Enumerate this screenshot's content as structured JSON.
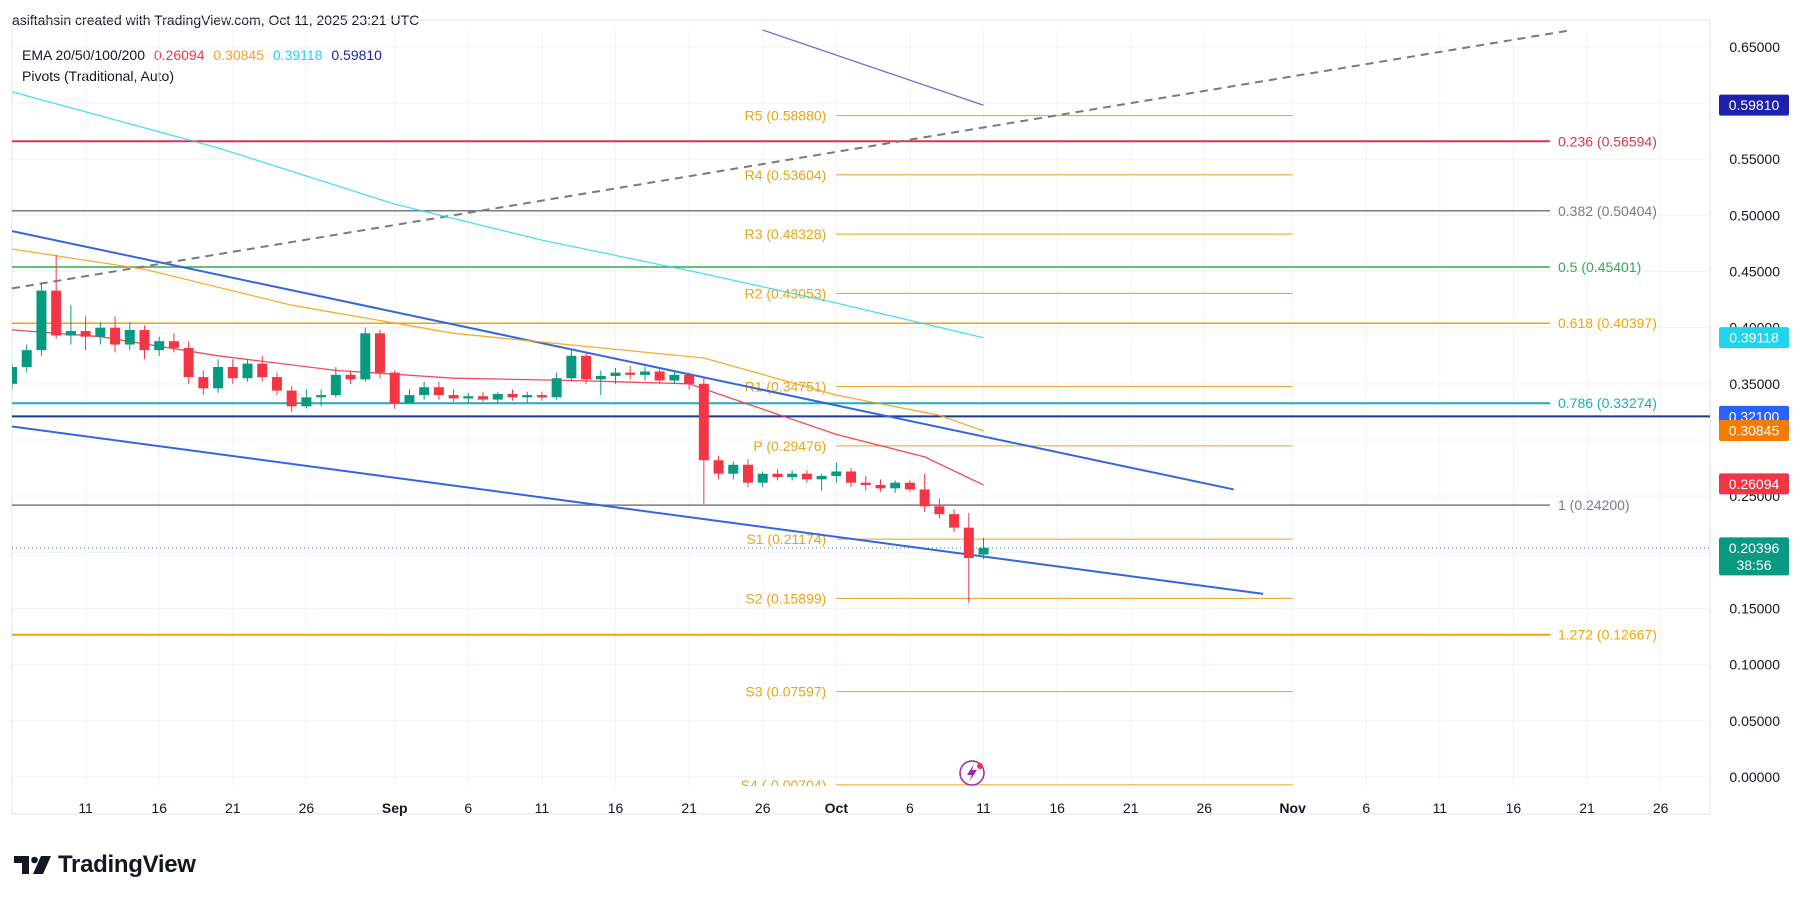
{
  "header": {
    "text": "asiftahsin created with TradingView.com, Oct 11, 2025 23:21 UTC"
  },
  "legend": {
    "ema_label": "EMA 20/50/100/200",
    "ema_values": [
      {
        "value": "0.26094",
        "color": "#f23645"
      },
      {
        "value": "0.30845",
        "color": "#f7a21b"
      },
      {
        "value": "0.39118",
        "color": "#22d3ee"
      },
      {
        "value": "0.59810",
        "color": "#1e22aa"
      }
    ],
    "pivots_label": "Pivots (Traditional, Auto)"
  },
  "brand": {
    "name": "TradingView"
  },
  "chart_data": {
    "type": "candlestick",
    "y_range": [
      -0.008,
      0.665
    ],
    "y_ticks": [
      "0.65000",
      "0.55000",
      "0.50000",
      "0.45000",
      "0.40000",
      "0.35000",
      "0.25000",
      "0.15000",
      "0.10000",
      "0.05000",
      "0.00000"
    ],
    "x_range": [
      "2025-08-06",
      "2025-11-30"
    ],
    "x_ticks": [
      {
        "date": "2025-08-11",
        "label": "11"
      },
      {
        "date": "2025-08-16",
        "label": "16"
      },
      {
        "date": "2025-08-21",
        "label": "21"
      },
      {
        "date": "2025-08-26",
        "label": "26"
      },
      {
        "date": "2025-09-01",
        "label": "Sep"
      },
      {
        "date": "2025-09-06",
        "label": "6"
      },
      {
        "date": "2025-09-11",
        "label": "11"
      },
      {
        "date": "2025-09-16",
        "label": "16"
      },
      {
        "date": "2025-09-21",
        "label": "21"
      },
      {
        "date": "2025-09-26",
        "label": "26"
      },
      {
        "date": "2025-10-01",
        "label": "Oct"
      },
      {
        "date": "2025-10-06",
        "label": "6"
      },
      {
        "date": "2025-10-11",
        "label": "11"
      },
      {
        "date": "2025-10-16",
        "label": "16"
      },
      {
        "date": "2025-10-21",
        "label": "21"
      },
      {
        "date": "2025-10-26",
        "label": "26"
      },
      {
        "date": "2025-11-01",
        "label": "Nov"
      },
      {
        "date": "2025-11-06",
        "label": "6"
      },
      {
        "date": "2025-11-11",
        "label": "11"
      },
      {
        "date": "2025-11-16",
        "label": "16"
      },
      {
        "date": "2025-11-21",
        "label": "21"
      },
      {
        "date": "2025-11-26",
        "label": "26"
      }
    ],
    "candles": [
      {
        "date": "2025-08-06",
        "o": 0.35,
        "h": 0.368,
        "l": 0.345,
        "c": 0.365
      },
      {
        "date": "2025-08-07",
        "o": 0.365,
        "h": 0.385,
        "l": 0.36,
        "c": 0.38
      },
      {
        "date": "2025-08-08",
        "o": 0.38,
        "h": 0.44,
        "l": 0.375,
        "c": 0.433
      },
      {
        "date": "2025-08-09",
        "o": 0.433,
        "h": 0.465,
        "l": 0.39,
        "c": 0.393
      },
      {
        "date": "2025-08-10",
        "o": 0.393,
        "h": 0.42,
        "l": 0.385,
        "c": 0.397
      },
      {
        "date": "2025-08-11",
        "o": 0.397,
        "h": 0.41,
        "l": 0.38,
        "c": 0.392
      },
      {
        "date": "2025-08-12",
        "o": 0.392,
        "h": 0.405,
        "l": 0.385,
        "c": 0.4
      },
      {
        "date": "2025-08-13",
        "o": 0.4,
        "h": 0.41,
        "l": 0.378,
        "c": 0.385
      },
      {
        "date": "2025-08-14",
        "o": 0.385,
        "h": 0.405,
        "l": 0.38,
        "c": 0.398
      },
      {
        "date": "2025-08-15",
        "o": 0.398,
        "h": 0.402,
        "l": 0.372,
        "c": 0.38
      },
      {
        "date": "2025-08-16",
        "o": 0.38,
        "h": 0.392,
        "l": 0.375,
        "c": 0.388
      },
      {
        "date": "2025-08-17",
        "o": 0.388,
        "h": 0.395,
        "l": 0.378,
        "c": 0.382
      },
      {
        "date": "2025-08-18",
        "o": 0.382,
        "h": 0.388,
        "l": 0.35,
        "c": 0.356
      },
      {
        "date": "2025-08-19",
        "o": 0.356,
        "h": 0.362,
        "l": 0.34,
        "c": 0.346
      },
      {
        "date": "2025-08-20",
        "o": 0.346,
        "h": 0.372,
        "l": 0.342,
        "c": 0.365
      },
      {
        "date": "2025-08-21",
        "o": 0.365,
        "h": 0.372,
        "l": 0.35,
        "c": 0.355
      },
      {
        "date": "2025-08-22",
        "o": 0.355,
        "h": 0.372,
        "l": 0.352,
        "c": 0.368
      },
      {
        "date": "2025-08-23",
        "o": 0.368,
        "h": 0.375,
        "l": 0.352,
        "c": 0.356
      },
      {
        "date": "2025-08-24",
        "o": 0.356,
        "h": 0.36,
        "l": 0.34,
        "c": 0.344
      },
      {
        "date": "2025-08-25",
        "o": 0.344,
        "h": 0.348,
        "l": 0.325,
        "c": 0.33
      },
      {
        "date": "2025-08-26",
        "o": 0.33,
        "h": 0.345,
        "l": 0.328,
        "c": 0.338
      },
      {
        "date": "2025-08-27",
        "o": 0.338,
        "h": 0.345,
        "l": 0.33,
        "c": 0.34
      },
      {
        "date": "2025-08-28",
        "o": 0.34,
        "h": 0.365,
        "l": 0.338,
        "c": 0.358
      },
      {
        "date": "2025-08-29",
        "o": 0.358,
        "h": 0.362,
        "l": 0.35,
        "c": 0.354
      },
      {
        "date": "2025-08-30",
        "o": 0.354,
        "h": 0.4,
        "l": 0.352,
        "c": 0.395
      },
      {
        "date": "2025-08-31",
        "o": 0.395,
        "h": 0.398,
        "l": 0.355,
        "c": 0.36
      },
      {
        "date": "2025-09-01",
        "o": 0.36,
        "h": 0.362,
        "l": 0.328,
        "c": 0.333
      },
      {
        "date": "2025-09-02",
        "o": 0.333,
        "h": 0.345,
        "l": 0.332,
        "c": 0.34
      },
      {
        "date": "2025-09-03",
        "o": 0.34,
        "h": 0.352,
        "l": 0.336,
        "c": 0.347
      },
      {
        "date": "2025-09-04",
        "o": 0.347,
        "h": 0.352,
        "l": 0.336,
        "c": 0.34
      },
      {
        "date": "2025-09-05",
        "o": 0.34,
        "h": 0.345,
        "l": 0.334,
        "c": 0.337
      },
      {
        "date": "2025-09-06",
        "o": 0.337,
        "h": 0.342,
        "l": 0.333,
        "c": 0.339
      },
      {
        "date": "2025-09-07",
        "o": 0.339,
        "h": 0.343,
        "l": 0.334,
        "c": 0.336
      },
      {
        "date": "2025-09-08",
        "o": 0.336,
        "h": 0.343,
        "l": 0.333,
        "c": 0.341
      },
      {
        "date": "2025-09-09",
        "o": 0.341,
        "h": 0.345,
        "l": 0.335,
        "c": 0.338
      },
      {
        "date": "2025-09-10",
        "o": 0.338,
        "h": 0.343,
        "l": 0.333,
        "c": 0.34
      },
      {
        "date": "2025-09-11",
        "o": 0.34,
        "h": 0.343,
        "l": 0.335,
        "c": 0.338
      },
      {
        "date": "2025-09-12",
        "o": 0.338,
        "h": 0.36,
        "l": 0.336,
        "c": 0.355
      },
      {
        "date": "2025-09-13",
        "o": 0.355,
        "h": 0.38,
        "l": 0.352,
        "c": 0.375
      },
      {
        "date": "2025-09-14",
        "o": 0.375,
        "h": 0.378,
        "l": 0.35,
        "c": 0.354
      },
      {
        "date": "2025-09-15",
        "o": 0.354,
        "h": 0.362,
        "l": 0.34,
        "c": 0.357
      },
      {
        "date": "2025-09-16",
        "o": 0.357,
        "h": 0.364,
        "l": 0.35,
        "c": 0.36
      },
      {
        "date": "2025-09-17",
        "o": 0.36,
        "h": 0.366,
        "l": 0.354,
        "c": 0.358
      },
      {
        "date": "2025-09-18",
        "o": 0.358,
        "h": 0.365,
        "l": 0.353,
        "c": 0.361
      },
      {
        "date": "2025-09-19",
        "o": 0.361,
        "h": 0.363,
        "l": 0.35,
        "c": 0.353
      },
      {
        "date": "2025-09-20",
        "o": 0.353,
        "h": 0.362,
        "l": 0.35,
        "c": 0.358
      },
      {
        "date": "2025-09-21",
        "o": 0.358,
        "h": 0.36,
        "l": 0.345,
        "c": 0.35
      },
      {
        "date": "2025-09-22",
        "o": 0.35,
        "h": 0.355,
        "l": 0.243,
        "c": 0.282
      },
      {
        "date": "2025-09-23",
        "o": 0.282,
        "h": 0.286,
        "l": 0.265,
        "c": 0.27
      },
      {
        "date": "2025-09-24",
        "o": 0.27,
        "h": 0.281,
        "l": 0.265,
        "c": 0.278
      },
      {
        "date": "2025-09-25",
        "o": 0.278,
        "h": 0.283,
        "l": 0.258,
        "c": 0.262
      },
      {
        "date": "2025-09-26",
        "o": 0.262,
        "h": 0.272,
        "l": 0.258,
        "c": 0.27
      },
      {
        "date": "2025-09-27",
        "o": 0.27,
        "h": 0.274,
        "l": 0.264,
        "c": 0.267
      },
      {
        "date": "2025-09-28",
        "o": 0.267,
        "h": 0.273,
        "l": 0.264,
        "c": 0.27
      },
      {
        "date": "2025-09-29",
        "o": 0.27,
        "h": 0.273,
        "l": 0.262,
        "c": 0.265
      },
      {
        "date": "2025-09-30",
        "o": 0.265,
        "h": 0.27,
        "l": 0.255,
        "c": 0.268
      },
      {
        "date": "2025-10-01",
        "o": 0.268,
        "h": 0.28,
        "l": 0.262,
        "c": 0.272
      },
      {
        "date": "2025-10-02",
        "o": 0.272,
        "h": 0.275,
        "l": 0.258,
        "c": 0.262
      },
      {
        "date": "2025-10-03",
        "o": 0.262,
        "h": 0.268,
        "l": 0.255,
        "c": 0.26
      },
      {
        "date": "2025-10-04",
        "o": 0.26,
        "h": 0.265,
        "l": 0.254,
        "c": 0.257
      },
      {
        "date": "2025-10-05",
        "o": 0.257,
        "h": 0.264,
        "l": 0.253,
        "c": 0.262
      },
      {
        "date": "2025-10-06",
        "o": 0.262,
        "h": 0.264,
        "l": 0.254,
        "c": 0.256
      },
      {
        "date": "2025-10-07",
        "o": 0.256,
        "h": 0.27,
        "l": 0.236,
        "c": 0.241
      },
      {
        "date": "2025-10-08",
        "o": 0.241,
        "h": 0.248,
        "l": 0.23,
        "c": 0.234
      },
      {
        "date": "2025-10-09",
        "o": 0.234,
        "h": 0.238,
        "l": 0.218,
        "c": 0.222
      },
      {
        "date": "2025-10-10",
        "o": 0.222,
        "h": 0.235,
        "l": 0.155,
        "c": 0.195
      },
      {
        "date": "2025-10-11",
        "o": 0.198,
        "h": 0.213,
        "l": 0.194,
        "c": 0.204
      }
    ],
    "emas": [
      {
        "name": "EMA 20",
        "color": "#f23645",
        "points": [
          [
            "2025-08-06",
            0.398
          ],
          [
            "2025-08-12",
            0.392
          ],
          [
            "2025-08-20",
            0.375
          ],
          [
            "2025-08-28",
            0.362
          ],
          [
            "2025-09-05",
            0.355
          ],
          [
            "2025-09-13",
            0.353
          ],
          [
            "2025-09-21",
            0.35
          ],
          [
            "2025-09-25",
            0.332
          ],
          [
            "2025-10-01",
            0.305
          ],
          [
            "2025-10-07",
            0.285
          ],
          [
            "2025-10-11",
            0.26
          ]
        ]
      },
      {
        "name": "EMA 50",
        "color": "#f7a21b",
        "points": [
          [
            "2025-08-06",
            0.47
          ],
          [
            "2025-08-15",
            0.452
          ],
          [
            "2025-08-25",
            0.42
          ],
          [
            "2025-09-05",
            0.395
          ],
          [
            "2025-09-15",
            0.382
          ],
          [
            "2025-09-22",
            0.373
          ],
          [
            "2025-10-01",
            0.34
          ],
          [
            "2025-10-08",
            0.322
          ],
          [
            "2025-10-11",
            0.308
          ]
        ]
      },
      {
        "name": "EMA 100",
        "color": "#22d3ee",
        "points": [
          [
            "2025-08-06",
            0.61
          ],
          [
            "2025-08-20",
            0.56
          ],
          [
            "2025-09-01",
            0.51
          ],
          [
            "2025-09-11",
            0.478
          ],
          [
            "2025-09-22",
            0.448
          ],
          [
            "2025-10-01",
            0.422
          ],
          [
            "2025-10-11",
            0.391
          ]
        ]
      },
      {
        "name": "EMA 200",
        "color": "#6a5acd",
        "points": [
          [
            "2025-09-26",
            0.665
          ],
          [
            "2025-10-11",
            0.598
          ]
        ]
      }
    ],
    "pivots": {
      "color": "#e8a317",
      "start": "2025-10-01",
      "end": "2025-11-01",
      "levels": [
        {
          "label": "R5",
          "value": 0.5888,
          "text": "R5 (0.58880)"
        },
        {
          "label": "R4",
          "value": 0.53604,
          "text": "R4 (0.53604)"
        },
        {
          "label": "R3",
          "value": 0.48328,
          "text": "R3 (0.48328)"
        },
        {
          "label": "R2",
          "value": 0.43053,
          "text": "R2 (0.43053)"
        },
        {
          "label": "R1",
          "value": 0.34751,
          "text": "R1 (0.34751)"
        },
        {
          "label": "P",
          "value": 0.29476,
          "text": "P (0.29476)"
        },
        {
          "label": "S1",
          "value": 0.21174,
          "text": "S1 (0.21174)"
        },
        {
          "label": "S2",
          "value": 0.15899,
          "text": "S2 (0.15899)"
        },
        {
          "label": "S3",
          "value": 0.07597,
          "text": "S3 (0.07597)"
        },
        {
          "label": "S4",
          "value": -0.00704,
          "text": "S4 (-0.00704)"
        }
      ]
    },
    "fib_levels": [
      {
        "ratio": "0.236",
        "value": 0.56594,
        "text": "0.236 (0.56594)",
        "color": "#e1334a",
        "width": 2
      },
      {
        "ratio": "0.382",
        "value": 0.50404,
        "text": "0.382 (0.50404)",
        "color": "#787b86",
        "width": 1.5
      },
      {
        "ratio": "0.5",
        "value": 0.45401,
        "text": "0.5 (0.45401)",
        "color": "#34a853",
        "width": 1.5
      },
      {
        "ratio": "0.618",
        "value": 0.40397,
        "text": "0.618 (0.40397)",
        "color": "#f0a500",
        "width": 1.5
      },
      {
        "ratio": "0.786",
        "value": 0.33274,
        "text": "0.786 (0.33274)",
        "color": "#1da9c2",
        "width": 2
      },
      {
        "ratio": "1",
        "value": 0.242,
        "text": "1 (0.24200)",
        "color": "#787b86",
        "width": 1.5
      },
      {
        "ratio": "1.272",
        "value": 0.12667,
        "text": "1.272 (0.12667)",
        "color": "#f0a500",
        "width": 2
      }
    ],
    "horizontal_lines": [
      {
        "value": 0.321,
        "color": "#1e3a8a",
        "width": 2
      },
      {
        "value": 0.20396,
        "color": "#089981",
        "width": 1,
        "dotted": true
      }
    ],
    "trendlines": [
      {
        "name": "channel-upper",
        "color": "#3366dd",
        "from": [
          "2025-08-06",
          0.486
        ],
        "to": [
          "2025-10-28",
          0.256
        ]
      },
      {
        "name": "channel-lower",
        "color": "#3366dd",
        "from": [
          "2025-08-06",
          0.312
        ],
        "to": [
          "2025-10-30",
          0.163
        ]
      },
      {
        "name": "dashed-trend",
        "color": "#7a7a7a",
        "dashed": true,
        "from": [
          "2025-08-06",
          0.435
        ],
        "to": [
          "2025-11-20",
          0.665
        ]
      }
    ],
    "price_badges": [
      {
        "value": 0.5981,
        "text": "0.59810",
        "bg": "#1e22aa"
      },
      {
        "value": 0.39118,
        "text": "0.39118",
        "bg": "#22d3ee",
        "fg": "#131722"
      },
      {
        "value": 0.321,
        "text": "0.32100",
        "bg": "#2962ff"
      },
      {
        "value": 0.30845,
        "text": "0.30845",
        "bg": "#f57c00"
      },
      {
        "value": 0.26094,
        "text": "0.26094",
        "bg": "#f23645"
      },
      {
        "value": 0.20396,
        "text": "0.20396",
        "sub": "38:56",
        "bg": "#089981"
      }
    ],
    "up_color": "#089981",
    "down_color": "#f23645"
  }
}
